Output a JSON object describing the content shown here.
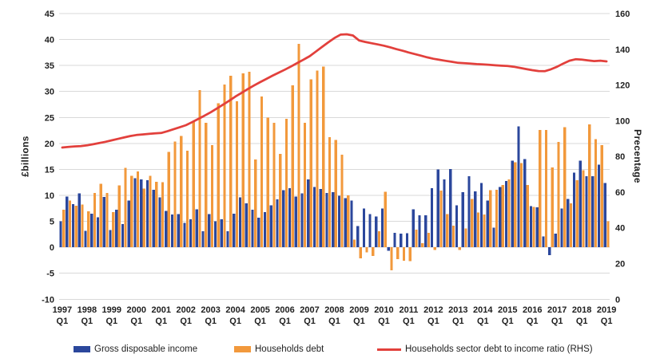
{
  "chart_data": {
    "type": "bar+line",
    "title": "",
    "ylabel_left": "£billions",
    "ylabel_right": "Precentage",
    "ylim_left": [
      -10,
      45
    ],
    "ylim_right": [
      0,
      160
    ],
    "y_left_ticks": [
      45,
      40,
      35,
      30,
      25,
      20,
      15,
      10,
      5,
      0,
      -5,
      -10
    ],
    "y_right_ticks": [
      160,
      140,
      120,
      100,
      80,
      60,
      40,
      20,
      0
    ],
    "grid": "horizontal only, light gray",
    "legend_position": "bottom",
    "x_years": [
      "1997",
      "1998",
      "1999",
      "2000",
      "2001",
      "2002",
      "2003",
      "2004",
      "2005",
      "2006",
      "2007",
      "2008",
      "2009",
      "2010",
      "2011",
      "2012",
      "2013",
      "2014",
      "2015",
      "2016",
      "2017",
      "2018",
      "2019"
    ],
    "x_sub_label": "Q1",
    "x_note": "89 quarters from 1997 Q1 to 2019 Q1; year tick under each Q1",
    "colors": {
      "income_bar": "#2b479c",
      "debt_bar": "#f2993c",
      "ratio_line": "#e2403c",
      "gridline": "#d9d9d9"
    },
    "series": [
      {
        "name": "Gross disposable income",
        "type": "bar",
        "axis": "left",
        "color": "#2b479c",
        "values": [
          5.0,
          9.8,
          8.3,
          10.4,
          3.2,
          6.5,
          5.8,
          9.7,
          3.3,
          7.2,
          4.5,
          9.0,
          13.3,
          13.1,
          12.9,
          11.1,
          9.6,
          7.0,
          6.3,
          6.4,
          4.7,
          5.4,
          7.3,
          3.1,
          6.4,
          5.0,
          5.4,
          3.1,
          6.5,
          9.6,
          8.5,
          7.2,
          5.7,
          6.8,
          8.1,
          9.2,
          11.0,
          11.4,
          9.8,
          10.4,
          13.1,
          11.6,
          11.2,
          10.5,
          10.6,
          9.9,
          9.5,
          9.0,
          4.1,
          7.5,
          6.4,
          5.9,
          7.5,
          -0.7,
          2.8,
          2.6,
          2.7,
          7.3,
          6.2,
          6.2,
          11.4,
          15.0,
          13.1,
          15.1,
          8.1,
          10.6,
          13.7,
          10.8,
          12.4,
          9.0,
          3.8,
          11.6,
          12.8,
          16.7,
          23.3,
          17.0,
          7.9,
          7.7,
          2.1,
          -1.5,
          2.6,
          7.5,
          9.3,
          14.4,
          16.7,
          13.7,
          13.7,
          15.9,
          12.4
        ]
      },
      {
        "name": "Households debt",
        "type": "bar",
        "axis": "left",
        "color": "#f2993c",
        "values": [
          7.2,
          9.0,
          8.0,
          8.2,
          6.9,
          10.5,
          12.2,
          10.5,
          6.8,
          11.9,
          15.3,
          13.8,
          14.6,
          11.3,
          13.8,
          12.6,
          12.5,
          18.4,
          20.4,
          21.4,
          18.6,
          24.2,
          30.3,
          24.0,
          19.7,
          27.7,
          31.3,
          33.0,
          28.1,
          33.5,
          33.8,
          16.9,
          29.0,
          25.0,
          24.0,
          18.0,
          24.7,
          31.2,
          39.2,
          24.0,
          32.3,
          34.0,
          34.8,
          21.2,
          20.7,
          17.8,
          10.0,
          1.5,
          -2.1,
          -1.0,
          -1.7,
          3.1,
          10.7,
          -4.4,
          -2.3,
          -2.6,
          -2.7,
          3.4,
          0.8,
          2.8,
          -0.5,
          10.9,
          6.4,
          4.2,
          -0.5,
          3.6,
          9.3,
          6.7,
          6.3,
          11.0,
          11.1,
          12.0,
          13.1,
          16.4,
          16.2,
          12.0,
          7.8,
          22.6,
          22.6,
          15.4,
          20.3,
          23.1,
          8.5,
          12.9,
          14.8,
          23.7,
          20.8,
          19.7,
          5.0
        ]
      },
      {
        "name": "Households sector debt to income ratio (RHS)",
        "type": "line",
        "axis": "right",
        "color": "#e2403c",
        "values": [
          85.0,
          85.3,
          85.6,
          85.8,
          86.2,
          86.8,
          87.5,
          88.2,
          89.0,
          89.8,
          90.6,
          91.4,
          92.0,
          92.3,
          92.6,
          92.9,
          93.1,
          94.1,
          95.2,
          96.3,
          97.5,
          99.2,
          101.0,
          102.8,
          104.7,
          106.8,
          109.0,
          111.2,
          113.5,
          115.6,
          117.7,
          119.7,
          121.6,
          123.4,
          125.2,
          126.9,
          128.6,
          130.4,
          132.3,
          134.2,
          136.1,
          138.7,
          141.3,
          143.9,
          146.3,
          148.2,
          148.4,
          147.7,
          144.9,
          144.1,
          143.4,
          142.7,
          142.0,
          141.1,
          140.1,
          139.2,
          138.2,
          137.3,
          136.4,
          135.5,
          134.7,
          134.1,
          133.5,
          133.0,
          132.4,
          132.2,
          132.0,
          131.7,
          131.5,
          131.3,
          131.0,
          130.8,
          130.6,
          130.2,
          129.6,
          128.9,
          128.3,
          127.8,
          127.7,
          128.8,
          130.2,
          132.0,
          133.6,
          134.4,
          134.2,
          133.8,
          133.4,
          133.6,
          133.2
        ]
      }
    ]
  }
}
